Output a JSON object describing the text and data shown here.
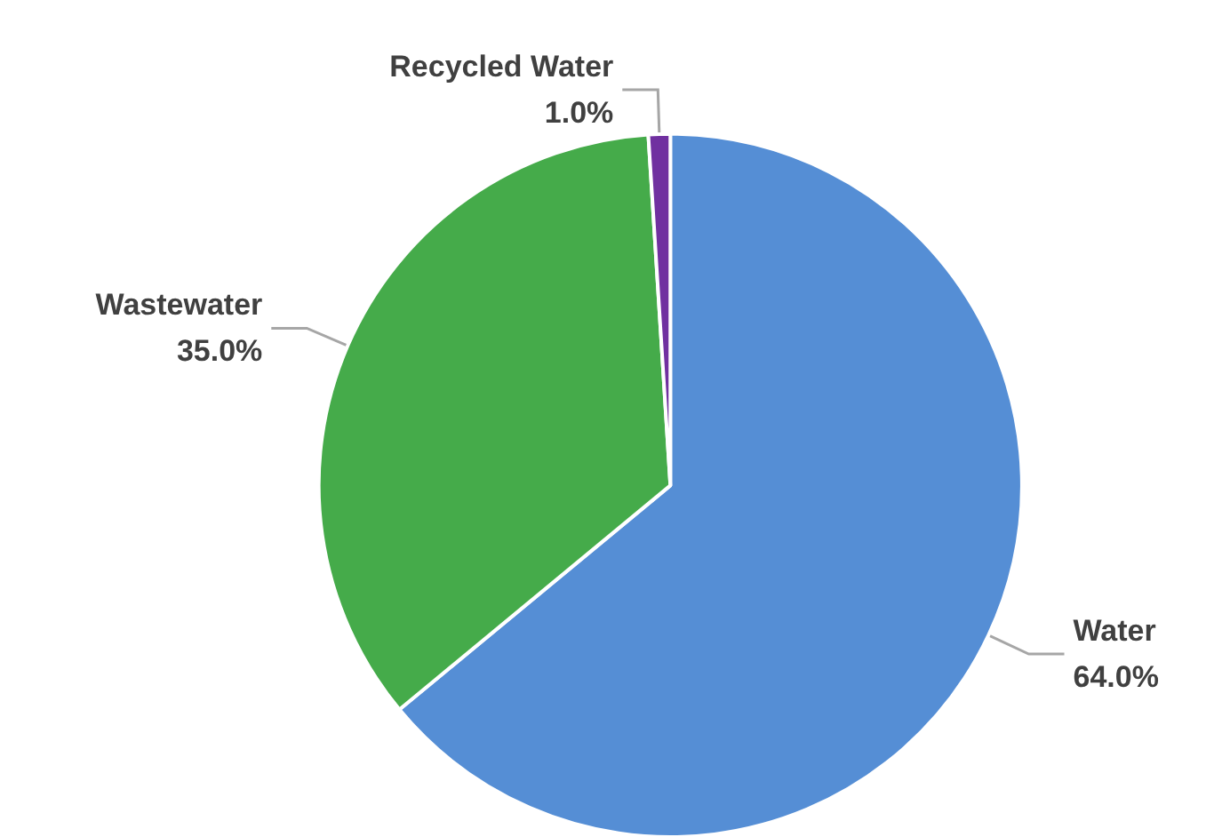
{
  "chart_data": {
    "type": "pie",
    "categories": [
      "Water",
      "Wastewater",
      "Recycled Water"
    ],
    "values": [
      64,
      35,
      1
    ],
    "colors": [
      "#558ed5",
      "#45ab4a",
      "#7030a0"
    ],
    "value_labels": [
      "64.0%",
      "35.0%",
      "1.0%"
    ],
    "legend": false
  }
}
